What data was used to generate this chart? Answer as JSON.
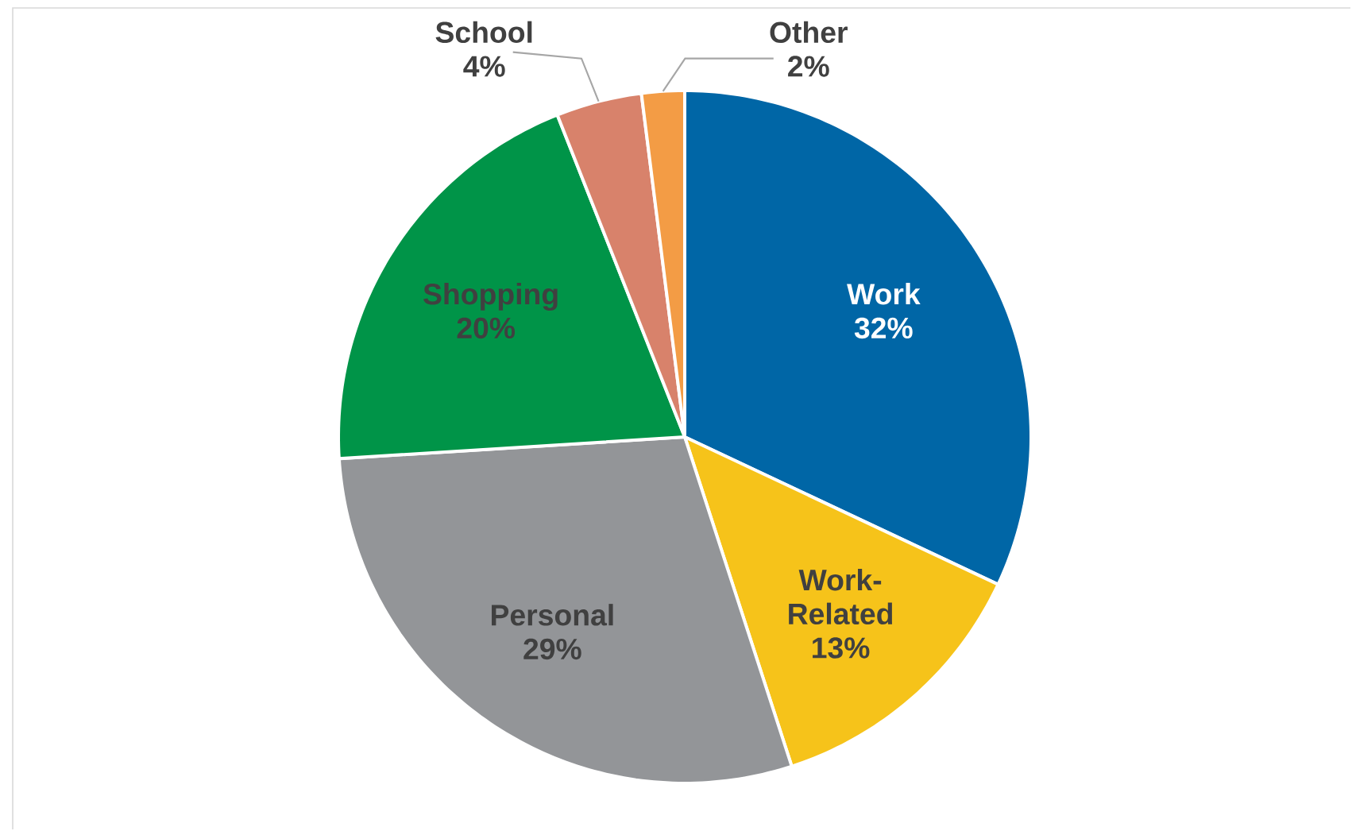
{
  "chart_data": {
    "type": "pie",
    "categories": [
      "Work",
      "Work-Related",
      "Personal",
      "Shopping",
      "School",
      "Other"
    ],
    "values": [
      32,
      13,
      29,
      20,
      4,
      2
    ],
    "value_labels": [
      "32%",
      "13%",
      "29%",
      "20%",
      "4%",
      "2%"
    ],
    "colors": [
      "#0066a6",
      "#f6c31a",
      "#939598",
      "#009448",
      "#d8826b",
      "#f39c45"
    ]
  }
}
